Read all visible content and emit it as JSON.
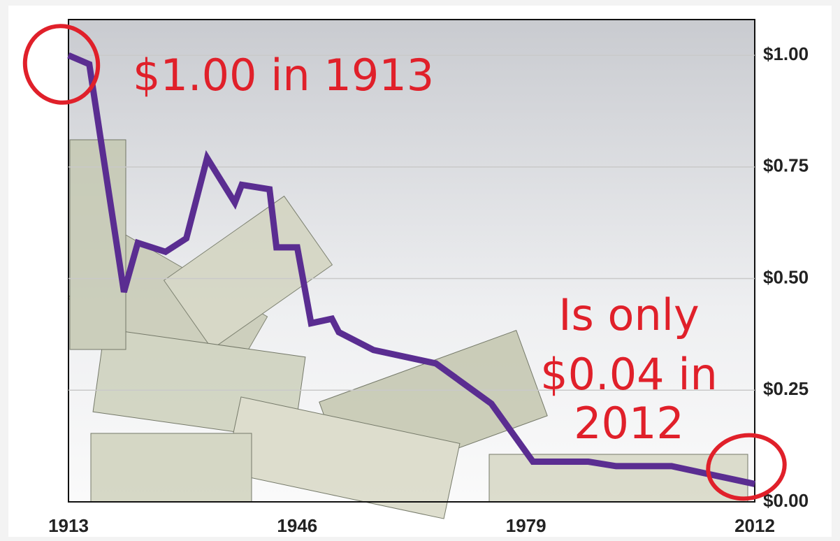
{
  "chart_data": {
    "type": "line",
    "x": [
      1913,
      1916,
      1921,
      1923,
      1927,
      1930,
      1933,
      1937,
      1938,
      1942,
      1943,
      1946,
      1948,
      1951,
      1952,
      1957,
      1966,
      1974,
      1980,
      1988,
      1992,
      2000,
      2012
    ],
    "values": [
      1.0,
      0.98,
      0.47,
      0.58,
      0.56,
      0.59,
      0.77,
      0.67,
      0.71,
      0.7,
      0.57,
      0.57,
      0.4,
      0.41,
      0.38,
      0.34,
      0.31,
      0.22,
      0.09,
      0.09,
      0.08,
      0.08,
      0.04
    ],
    "color": "#5a2d91",
    "xlim": [
      1913,
      2012
    ],
    "xticks": [
      1913,
      1946,
      1979,
      2012
    ],
    "ylim": [
      0,
      1.08
    ],
    "yticks": [
      {
        "value": 0,
        "label": "$0.00"
      },
      {
        "value": 0.25,
        "label": "$0.25"
      },
      {
        "value": 0.5,
        "label": "$0.50"
      },
      {
        "value": 0.75,
        "label": "$0.75"
      },
      {
        "value": 1,
        "label": "$1.00"
      }
    ],
    "grid": true,
    "annotations": [
      "$1.00 in 1913",
      "Is only",
      "$0.04 in",
      "2012"
    ]
  }
}
